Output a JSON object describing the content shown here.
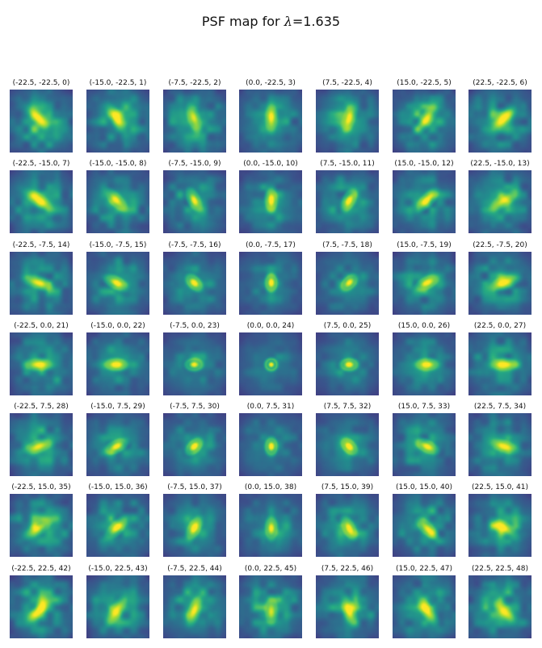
{
  "chart_data": {
    "type": "heatmap",
    "title_prefix": "PSF map for ",
    "title_symbol": "λ",
    "title_suffix": "=1.635",
    "colormap": "viridis",
    "grid": {
      "rows": 7,
      "cols": 7
    },
    "x_offsets": [
      -22.5,
      -15.0,
      -7.5,
      0.0,
      7.5,
      15.0,
      22.5
    ],
    "y_offsets": [
      -22.5,
      -15.0,
      -7.5,
      0.0,
      7.5,
      15.0,
      22.5
    ],
    "panel_labels": [
      "(-22.5, -22.5, 0)",
      "(-15.0, -22.5, 1)",
      "(-7.5, -22.5, 2)",
      "(0.0, -22.5, 3)",
      "(7.5, -22.5, 4)",
      "(15.0, -22.5, 5)",
      "(22.5, -22.5, 6)",
      "(-22.5, -15.0, 7)",
      "(-15.0, -15.0, 8)",
      "(-7.5, -15.0, 9)",
      "(0.0, -15.0, 10)",
      "(7.5, -15.0, 11)",
      "(15.0, -15.0, 12)",
      "(22.5, -15.0, 13)",
      "(-22.5, -7.5, 14)",
      "(-15.0, -7.5, 15)",
      "(-7.5, -7.5, 16)",
      "(0.0, -7.5, 17)",
      "(7.5, -7.5, 18)",
      "(15.0, -7.5, 19)",
      "(22.5, -7.5, 20)",
      "(-22.5, 0.0, 21)",
      "(-15.0, 0.0, 22)",
      "(-7.5, 0.0, 23)",
      "(0.0, 0.0, 24)",
      "(7.5, 0.0, 25)",
      "(15.0, 0.0, 26)",
      "(22.5, 0.0, 27)",
      "(-22.5, 7.5, 28)",
      "(-15.0, 7.5, 29)",
      "(-7.5, 7.5, 30)",
      "(0.0, 7.5, 31)",
      "(7.5, 7.5, 32)",
      "(15.0, 7.5, 33)",
      "(22.5, 7.5, 34)",
      "(-22.5, 15.0, 35)",
      "(-15.0, 15.0, 36)",
      "(-7.5, 15.0, 37)",
      "(0.0, 15.0, 38)",
      "(7.5, 15.0, 39)",
      "(15.0, 15.0, 40)",
      "(22.5, 15.0, 41)",
      "(-22.5, 22.5, 42)",
      "(-15.0, 22.5, 43)",
      "(-7.5, 22.5, 44)",
      "(0.0, 22.5, 45)",
      "(7.5, 22.5, 46)",
      "(15.0, 22.5, 47)",
      "(22.5, 22.5, 48)"
    ],
    "colors": {
      "background": "#440154",
      "mid_low": "#3b528b",
      "mid": "#21908d",
      "mid_high": "#5dc963",
      "peak": "#fde725"
    },
    "axes_visible": false
  }
}
